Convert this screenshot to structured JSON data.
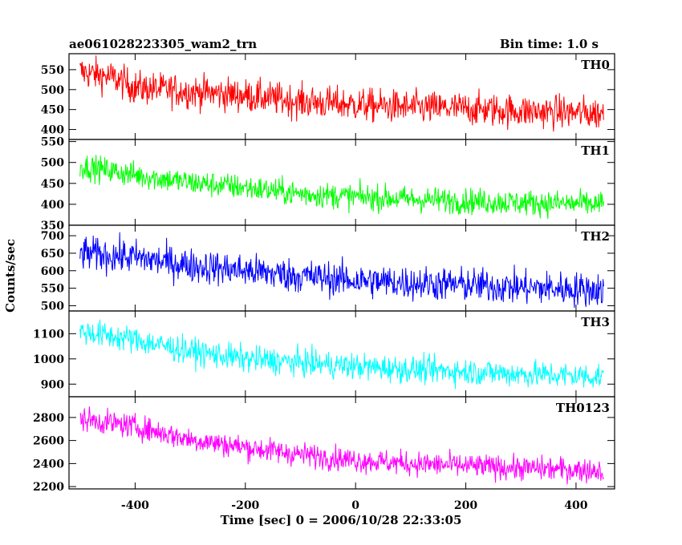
{
  "header": {
    "title": "ae061028223305_wam2_trn",
    "bin_time": "Bin time: 1.0 s"
  },
  "chart_data": {
    "type": "line",
    "xlabel": "Time [sec] 0 = 2006/10/28 22:33:05",
    "ylabel": "Counts/sec",
    "xlim": [
      -520,
      470
    ],
    "x_start": -500,
    "x_end": 450,
    "x_ticks": [
      -400,
      -200,
      0,
      200,
      400
    ],
    "panels": [
      {
        "name": "TH0",
        "color": "#ff0000",
        "ylim": [
          375,
          590
        ],
        "y_ticks": [
          400,
          450,
          500,
          550
        ],
        "trend": [
          [
            -500,
            545
          ],
          [
            -440,
            530
          ],
          [
            -400,
            505
          ],
          [
            -300,
            495
          ],
          [
            -200,
            485
          ],
          [
            -100,
            470
          ],
          [
            0,
            462
          ],
          [
            100,
            455
          ],
          [
            200,
            452
          ],
          [
            300,
            446
          ],
          [
            450,
            440
          ]
        ],
        "noise": 30
      },
      {
        "name": "TH1",
        "color": "#00ff00",
        "ylim": [
          350,
          555
        ],
        "y_ticks": [
          350,
          400,
          450,
          500,
          550
        ],
        "trend": [
          [
            -500,
            492
          ],
          [
            -400,
            470
          ],
          [
            -300,
            452
          ],
          [
            -200,
            440
          ],
          [
            -100,
            425
          ],
          [
            0,
            418
          ],
          [
            100,
            412
          ],
          [
            200,
            408
          ],
          [
            300,
            404
          ],
          [
            450,
            400
          ]
        ],
        "noise": 22
      },
      {
        "name": "TH2",
        "color": "#0000ff",
        "ylim": [
          485,
          730
        ],
        "y_ticks": [
          500,
          550,
          600,
          650,
          700
        ],
        "trend": [
          [
            -500,
            650
          ],
          [
            -400,
            638
          ],
          [
            -300,
            615
          ],
          [
            -200,
            600
          ],
          [
            -100,
            585
          ],
          [
            0,
            572
          ],
          [
            100,
            565
          ],
          [
            200,
            560
          ],
          [
            300,
            552
          ],
          [
            450,
            545
          ]
        ],
        "noise": 35
      },
      {
        "name": "TH3",
        "color": "#00ffff",
        "ylim": [
          850,
          1190
        ],
        "y_ticks": [
          900,
          1000,
          1100
        ],
        "trend": [
          [
            -500,
            1110
          ],
          [
            -400,
            1075
          ],
          [
            -300,
            1030
          ],
          [
            -200,
            1000
          ],
          [
            -100,
            985
          ],
          [
            0,
            970
          ],
          [
            100,
            958
          ],
          [
            200,
            950
          ],
          [
            300,
            940
          ],
          [
            450,
            930
          ]
        ],
        "noise": 38
      },
      {
        "name": "TH0123",
        "color": "#ff00ff",
        "ylim": [
          2180,
          2980
        ],
        "y_ticks": [
          2200,
          2400,
          2600,
          2800
        ],
        "trend": [
          [
            -500,
            2790
          ],
          [
            -400,
            2720
          ],
          [
            -300,
            2610
          ],
          [
            -200,
            2540
          ],
          [
            -100,
            2480
          ],
          [
            0,
            2430
          ],
          [
            100,
            2400
          ],
          [
            200,
            2380
          ],
          [
            300,
            2360
          ],
          [
            450,
            2340
          ]
        ],
        "noise": 75
      }
    ]
  }
}
